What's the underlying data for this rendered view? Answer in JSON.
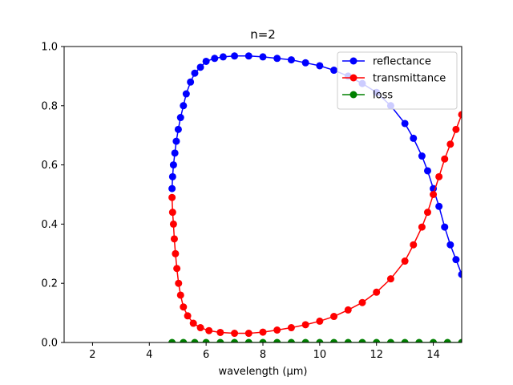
{
  "chart_data": {
    "type": "line",
    "title": "n=2",
    "xlabel": "wavelength (μm)",
    "ylabel": "",
    "xlim": [
      1,
      15
    ],
    "ylim": [
      0,
      1
    ],
    "xticks": [
      "2",
      "4",
      "6",
      "8",
      "10",
      "12",
      "14"
    ],
    "yticks": [
      "0.0",
      "0.2",
      "0.4",
      "0.6",
      "0.8",
      "1.0"
    ],
    "grid": false,
    "legend_position": "top-right",
    "series": [
      {
        "name": "reflectance",
        "color": "#0000ff",
        "marker": "circle",
        "points": [
          [
            4.8,
            0.52
          ],
          [
            4.82,
            0.56
          ],
          [
            4.85,
            0.6
          ],
          [
            4.9,
            0.64
          ],
          [
            4.95,
            0.68
          ],
          [
            5.02,
            0.72
          ],
          [
            5.1,
            0.76
          ],
          [
            5.2,
            0.8
          ],
          [
            5.3,
            0.84
          ],
          [
            5.45,
            0.88
          ],
          [
            5.6,
            0.91
          ],
          [
            5.8,
            0.93
          ],
          [
            6.0,
            0.95
          ],
          [
            6.3,
            0.96
          ],
          [
            6.6,
            0.965
          ],
          [
            7.0,
            0.968
          ],
          [
            7.5,
            0.968
          ],
          [
            8.0,
            0.965
          ],
          [
            8.5,
            0.96
          ],
          [
            9.0,
            0.955
          ],
          [
            9.5,
            0.945
          ],
          [
            10.0,
            0.935
          ],
          [
            10.5,
            0.92
          ],
          [
            11.0,
            0.9
          ],
          [
            11.5,
            0.875
          ],
          [
            12.0,
            0.845
          ],
          [
            12.5,
            0.8
          ],
          [
            13.0,
            0.74
          ],
          [
            13.3,
            0.69
          ],
          [
            13.6,
            0.63
          ],
          [
            13.8,
            0.58
          ],
          [
            14.0,
            0.52
          ],
          [
            14.2,
            0.46
          ],
          [
            14.4,
            0.39
          ],
          [
            14.6,
            0.33
          ],
          [
            14.8,
            0.28
          ],
          [
            15.0,
            0.23
          ]
        ]
      },
      {
        "name": "transmittance",
        "color": "#ff0000",
        "marker": "circle",
        "points": [
          [
            4.8,
            0.49
          ],
          [
            4.82,
            0.44
          ],
          [
            4.85,
            0.4
          ],
          [
            4.88,
            0.35
          ],
          [
            4.92,
            0.3
          ],
          [
            4.97,
            0.25
          ],
          [
            5.03,
            0.2
          ],
          [
            5.1,
            0.16
          ],
          [
            5.2,
            0.12
          ],
          [
            5.35,
            0.09
          ],
          [
            5.55,
            0.065
          ],
          [
            5.8,
            0.05
          ],
          [
            6.1,
            0.04
          ],
          [
            6.5,
            0.034
          ],
          [
            7.0,
            0.031
          ],
          [
            7.5,
            0.031
          ],
          [
            8.0,
            0.035
          ],
          [
            8.5,
            0.042
          ],
          [
            9.0,
            0.05
          ],
          [
            9.5,
            0.06
          ],
          [
            10.0,
            0.072
          ],
          [
            10.5,
            0.088
          ],
          [
            11.0,
            0.11
          ],
          [
            11.5,
            0.135
          ],
          [
            12.0,
            0.17
          ],
          [
            12.5,
            0.215
          ],
          [
            13.0,
            0.275
          ],
          [
            13.3,
            0.33
          ],
          [
            13.6,
            0.39
          ],
          [
            13.8,
            0.44
          ],
          [
            14.0,
            0.5
          ],
          [
            14.2,
            0.56
          ],
          [
            14.4,
            0.62
          ],
          [
            14.6,
            0.67
          ],
          [
            14.8,
            0.72
          ],
          [
            15.0,
            0.77
          ]
        ]
      },
      {
        "name": "loss",
        "color": "#008000",
        "marker": "circle",
        "points": [
          [
            4.8,
            0.0
          ],
          [
            5.2,
            0.0
          ],
          [
            5.6,
            0.0
          ],
          [
            6.0,
            0.0
          ],
          [
            6.5,
            0.0
          ],
          [
            7.0,
            0.0
          ],
          [
            7.5,
            0.0
          ],
          [
            8.0,
            0.0
          ],
          [
            8.5,
            0.0
          ],
          [
            9.0,
            0.0
          ],
          [
            9.5,
            0.0
          ],
          [
            10.0,
            0.0
          ],
          [
            10.5,
            0.0
          ],
          [
            11.0,
            0.0
          ],
          [
            11.5,
            0.0
          ],
          [
            12.0,
            0.0
          ],
          [
            12.5,
            0.0
          ],
          [
            13.0,
            0.0
          ],
          [
            13.5,
            0.0
          ],
          [
            14.0,
            0.0
          ],
          [
            14.5,
            0.0
          ],
          [
            15.0,
            0.0
          ]
        ]
      }
    ]
  }
}
